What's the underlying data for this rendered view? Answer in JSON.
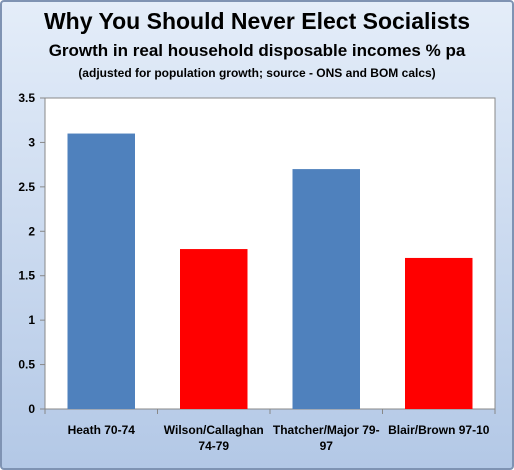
{
  "chart_data": {
    "type": "bar",
    "title": "Why You Should Never Elect Socialists",
    "subtitle": "Growth in real household disposable incomes % pa",
    "note": "(adjusted for population growth; source - ONS and BOM calcs)",
    "categories": [
      [
        "Heath 70-74"
      ],
      [
        "Wilson/Callaghan",
        "74-79"
      ],
      [
        "Thatcher/Major 79-",
        "97"
      ],
      [
        "Blair/Brown 97-10"
      ]
    ],
    "values": [
      3.1,
      1.8,
      2.7,
      1.7
    ],
    "bar_colors": [
      "#4f81bd",
      "#ff0000",
      "#4f81bd",
      "#ff0000"
    ],
    "yticks": [
      "0",
      "0.5",
      "1",
      "1.5",
      "2",
      "2.5",
      "3",
      "3.5"
    ],
    "ylim": [
      0,
      3.5
    ],
    "grid": false,
    "legend": "none"
  }
}
